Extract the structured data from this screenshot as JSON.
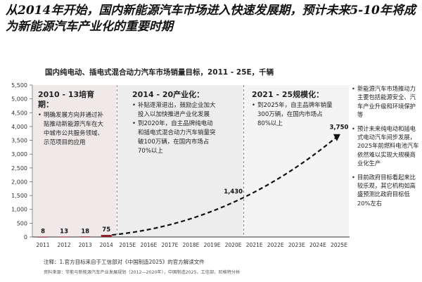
{
  "header": {
    "title": "从2014年开始，国内新能源汽车市场进入快速发展期，预计未来5-10年将成为新能源汽车产业化的重要时期"
  },
  "chart_data": {
    "type": "bar",
    "title": "国内纯电动、插电式混合动力汽车市场销量目标，2011 - 25E，千辆",
    "categories": [
      "2011",
      "2012",
      "2013",
      "2014",
      "2015E",
      "2016E",
      "2017E",
      "2018E",
      "2019E",
      "2020E",
      "2021E",
      "2022E",
      "2023E",
      "2024E",
      "2025E"
    ],
    "values": [
      8,
      13,
      18,
      75,
      null,
      null,
      null,
      null,
      null,
      1430,
      null,
      null,
      null,
      null,
      3750
    ],
    "value_labels": [
      "8",
      "13",
      "18",
      "75",
      "",
      "",
      "",
      "",
      "",
      "1,430",
      "",
      "",
      "",
      "",
      "3,750"
    ],
    "ylim": [
      0,
      5500
    ],
    "yticks": [
      0,
      500,
      1000,
      1500,
      2000,
      2500,
      3000,
      3500,
      4000,
      4500,
      5000,
      5500
    ],
    "ytick_labels": [
      "0",
      "500",
      "1,000",
      "1,500",
      "2,000",
      "2,500",
      "3,000",
      "3,500",
      "4,000",
      "4,500",
      "5,000",
      "5,500"
    ],
    "highlight_bar_color": "#8b1a2b",
    "trend_color": "#111111",
    "phase_colors": [
      "#f0e9ea",
      "#ededed",
      "#f4f4f4"
    ]
  },
  "phases": [
    {
      "heading": "2010 - 13培育期：",
      "bullets": [
        "明确发展方向并通过补贴推动新能源汽车在大中城市公共服务领域、示范项目的应用"
      ]
    },
    {
      "heading": "2014 - 20产业化：",
      "bullets": [
        "补贴逐渐退出，鼓励企业加大投入以加快推进产业化发展",
        "到2020年，自主品牌纯电动和插电式混合动力汽车销量突破100万辆，在国内市场占70%以上"
      ]
    },
    {
      "heading": "2021 - 25规模化：",
      "bullets": [
        "到2025年，自主品牌年销量300万辆，在国内市场占80%以上"
      ]
    }
  ],
  "sidebar": {
    "items": [
      "新能源汽车市场推动力主要包括能源安全、汽车产业升级和环境保护等",
      "预计未来纯电动和插电式电动汽车间步发展，2025年前燃料电池汽车依然难以实现大规模商业化生产",
      "目前政府目标看起来比较乐观，其它机构如高盛预测比政府目标低20%左右"
    ]
  },
  "footnote": "注释：1.官方目标来自于工信部对《中国制造2025》的官方解读文件",
  "source": "资料来源：节能与新能源汽车产业发展规划（2012—2020年），中国制造2025，工信部，尼格特分析"
}
